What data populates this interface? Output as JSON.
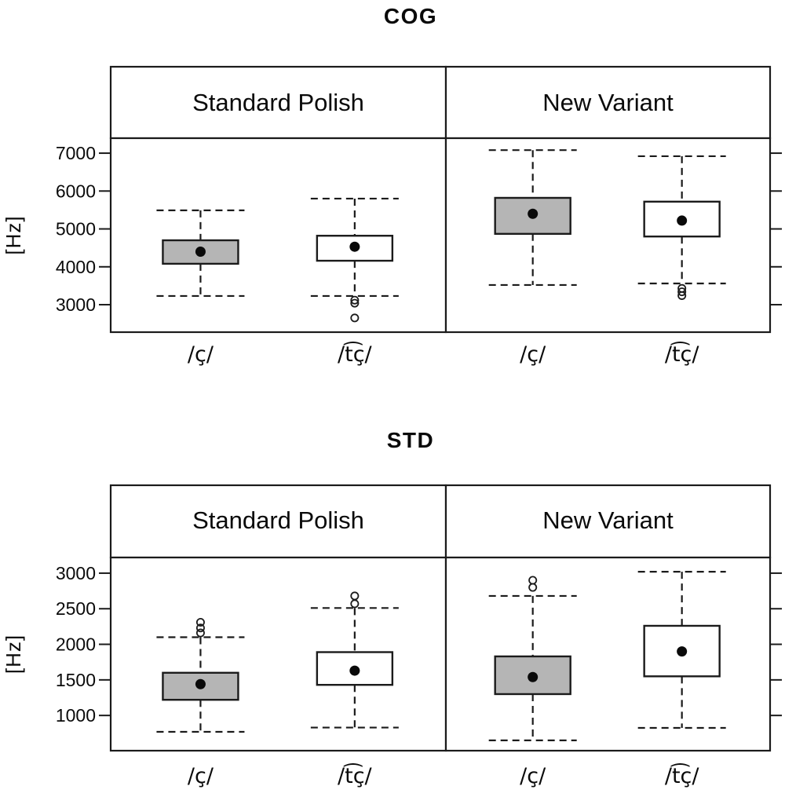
{
  "figure": {
    "background": "#ffffff",
    "line_color": "#1b1b1b",
    "gray_box_fill": "#b5b5b5",
    "white_box_fill": "#ffffff"
  },
  "chart_data": [
    {
      "type": "boxplot",
      "title": "COG",
      "ylabel": "[Hz]",
      "ylim": [
        2275,
        7395
      ],
      "yticks": [
        7000,
        6000,
        5000,
        4000,
        3000
      ],
      "grid": false,
      "panels": [
        {
          "label": "Standard Polish",
          "boxes": [
            {
              "category": "/ç/",
              "fill": "#b5b5b5",
              "whisker_low": 3230,
              "q1": 4080,
              "median": 4400,
              "q3": 4700,
              "whisker_high": 5490,
              "outliers": []
            },
            {
              "category": "/t͡ç/",
              "fill": "#ffffff",
              "whisker_low": 3230,
              "q1": 4160,
              "median": 4530,
              "q3": 4820,
              "whisker_high": 5800,
              "outliers": [
                3120,
                3040,
                2650
              ]
            }
          ]
        },
        {
          "label": "New Variant",
          "boxes": [
            {
              "category": "/ç/",
              "fill": "#b5b5b5",
              "whisker_low": 3520,
              "q1": 4870,
              "median": 5400,
              "q3": 5820,
              "whisker_high": 7080,
              "outliers": []
            },
            {
              "category": "/t͡ç/",
              "fill": "#ffffff",
              "whisker_low": 3560,
              "q1": 4800,
              "median": 5220,
              "q3": 5720,
              "whisker_high": 6920,
              "outliers": [
                3430,
                3340,
                3240
              ]
            }
          ]
        }
      ]
    },
    {
      "type": "boxplot",
      "title": "STD",
      "ylabel": "[Hz]",
      "ylim": [
        505,
        3220
      ],
      "yticks": [
        3000,
        2500,
        2000,
        1500,
        1000
      ],
      "grid": false,
      "panels": [
        {
          "label": "Standard Polish",
          "boxes": [
            {
              "category": "/ç/",
              "fill": "#b5b5b5",
              "whisker_low": 770,
              "q1": 1220,
              "median": 1440,
              "q3": 1600,
              "whisker_high": 2100,
              "outliers": [
                2310,
                2230,
                2160
              ]
            },
            {
              "category": "/t͡ç/",
              "fill": "#ffffff",
              "whisker_low": 830,
              "q1": 1430,
              "median": 1630,
              "q3": 1890,
              "whisker_high": 2510,
              "outliers": [
                2680,
                2570
              ]
            }
          ]
        },
        {
          "label": "New Variant",
          "boxes": [
            {
              "category": "/ç/",
              "fill": "#b5b5b5",
              "whisker_low": 650,
              "q1": 1300,
              "median": 1540,
              "q3": 1830,
              "whisker_high": 2680,
              "outliers": [
                2900,
                2800
              ]
            },
            {
              "category": "/t͡ç/",
              "fill": "#ffffff",
              "whisker_low": 825,
              "q1": 1550,
              "median": 1900,
              "q3": 2260,
              "whisker_high": 3020,
              "outliers": []
            }
          ]
        }
      ]
    }
  ]
}
